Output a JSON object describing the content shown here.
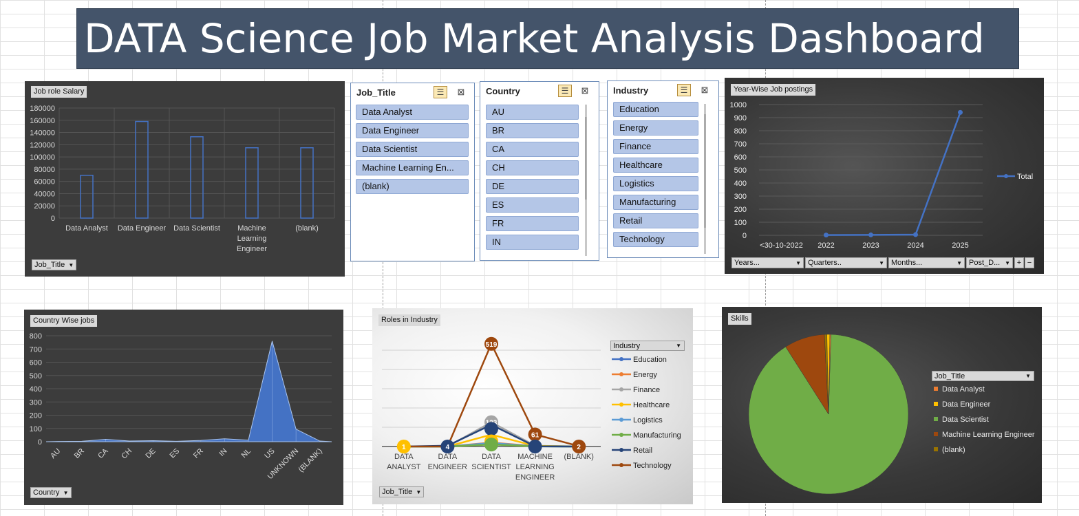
{
  "dashboard": {
    "title": "DATA Science Job Market Analysis Dashboard"
  },
  "salary_chart": {
    "tag": "Job role Salary",
    "field_button": "Job_Title"
  },
  "slicers": {
    "job_title": {
      "header": "Job_Title",
      "items": [
        "Data Analyst",
        "Data Engineer",
        "Data Scientist",
        "Machine Learning En...",
        "(blank)"
      ]
    },
    "country": {
      "header": "Country",
      "items": [
        "AU",
        "BR",
        "CA",
        "CH",
        "DE",
        "ES",
        "FR",
        "IN"
      ]
    },
    "industry": {
      "header": "Industry",
      "items": [
        "Education",
        "Energy",
        "Finance",
        "Healthcare",
        "Logistics",
        "Manufacturing",
        "Retail",
        "Technology"
      ]
    }
  },
  "year_chart": {
    "tag": "Year-Wise Job postings",
    "legend": "Total",
    "filters": [
      "Years...",
      "Quarters..",
      "Months...",
      "Post_D..."
    ],
    "plus": "+",
    "minus": "−"
  },
  "country_chart": {
    "tag": "Country Wise jobs",
    "field_button": "Country"
  },
  "industry_chart": {
    "tag": "Roles in Industry",
    "field_button": "Job_Title",
    "legend_title": "Industry",
    "labels": {
      "top": "519",
      "mid": "61",
      "cluster": "123",
      "da": "1",
      "de": "4",
      "blank": "2"
    }
  },
  "skills_chart": {
    "tag": "Skills",
    "legend_title": "Job_Title"
  },
  "chart_data": [
    {
      "type": "bar",
      "title": "Job role Salary",
      "categories": [
        "Data Analyst",
        "Data Engineer",
        "Data Scientist",
        "Machine Learning Engineer",
        "(blank)"
      ],
      "values": [
        70000,
        158000,
        133000,
        115000,
        115000
      ],
      "ylim": [
        0,
        180000
      ],
      "yticks": [
        0,
        20000,
        40000,
        60000,
        80000,
        100000,
        120000,
        140000,
        160000,
        180000
      ],
      "grid": true
    },
    {
      "type": "line",
      "title": "Year-Wise Job postings",
      "categories": [
        "<30-10-2022",
        "2022",
        "2023",
        "2024",
        "2025"
      ],
      "series": [
        {
          "name": "Total",
          "values": [
            null,
            2,
            3,
            5,
            940
          ],
          "color": "#4472c4"
        }
      ],
      "ylim": [
        0,
        1000
      ],
      "yticks": [
        0,
        100,
        200,
        300,
        400,
        500,
        600,
        700,
        800,
        900,
        1000
      ],
      "legend": "right"
    },
    {
      "type": "area",
      "title": "Country Wise jobs",
      "categories": [
        "AU",
        "BR",
        "CA",
        "CH",
        "DE",
        "ES",
        "FR",
        "IN",
        "NL",
        "US",
        "UNKNOWN",
        "(BLANK)"
      ],
      "values": [
        2,
        3,
        18,
        5,
        8,
        3,
        10,
        22,
        12,
        760,
        95,
        5
      ],
      "ylim": [
        0,
        800
      ],
      "yticks": [
        0,
        100,
        200,
        300,
        400,
        500,
        600,
        700,
        800
      ],
      "color": "#4472c4"
    },
    {
      "type": "line",
      "title": "Roles in Industry",
      "categories": [
        "DATA ANALYST",
        "DATA ENGINEER",
        "DATA SCIENTIST",
        "MACHINE LEARNING ENGINEER",
        "(BLANK)"
      ],
      "series": [
        {
          "name": "Education",
          "values": [
            0,
            0,
            12,
            1,
            0
          ],
          "color": "#4472c4"
        },
        {
          "name": "Energy",
          "values": [
            0,
            0,
            20,
            2,
            0
          ],
          "color": "#ed7d31"
        },
        {
          "name": "Finance",
          "values": [
            0,
            0,
            123,
            4,
            0
          ],
          "color": "#a5a5a5"
        },
        {
          "name": "Healthcare",
          "values": [
            1,
            0,
            60,
            3,
            0
          ],
          "color": "#ffc000"
        },
        {
          "name": "Logistics",
          "values": [
            0,
            0,
            18,
            1,
            0
          ],
          "color": "#5b9bd5"
        },
        {
          "name": "Manufacturing",
          "values": [
            0,
            0,
            10,
            1,
            0
          ],
          "color": "#70ad47"
        },
        {
          "name": "Retail",
          "values": [
            0,
            4,
            110,
            1,
            0
          ],
          "color": "#264478"
        },
        {
          "name": "Technology",
          "values": [
            0,
            0,
            519,
            61,
            2
          ],
          "color": "#9e480e"
        }
      ],
      "legend": "right"
    },
    {
      "type": "pie",
      "title": "Skills",
      "categories": [
        "Data Analyst",
        "Data Engineer",
        "Data Scientist",
        "Machine Learning Engineer",
        "(blank)"
      ],
      "values": [
        0.2,
        0.6,
        90.5,
        8.2,
        0.5
      ],
      "colors": [
        "#ed7d31",
        "#ffc000",
        "#70ad47",
        "#9e480e",
        "#997300"
      ],
      "legend": "right"
    }
  ]
}
